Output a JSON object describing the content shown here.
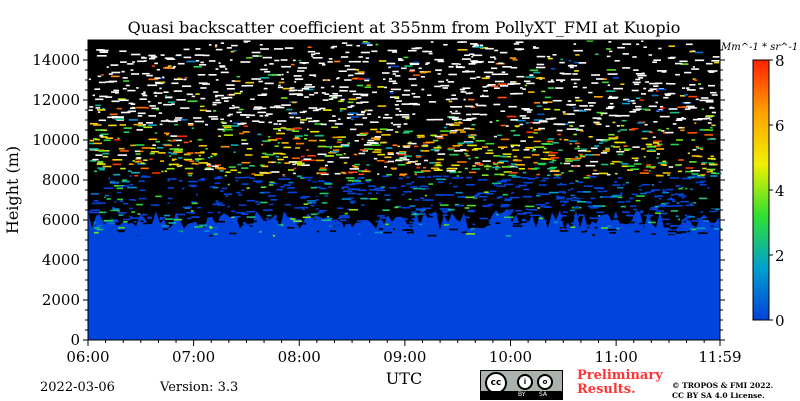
{
  "chart_data": {
    "type": "heatmap",
    "title": "Quasi backscatter coefficient at 355nm from PollyXT_FMI at Kuopio",
    "xlabel": "UTC",
    "ylabel": "Height (m)",
    "x_ticks": [
      "06:00",
      "07:00",
      "08:00",
      "09:00",
      "10:00",
      "11:00",
      "11:59"
    ],
    "xlim": [
      "06:00",
      "11:59"
    ],
    "y_ticks": [
      0,
      2000,
      4000,
      6000,
      8000,
      10000,
      12000,
      14000
    ],
    "ylim": [
      0,
      15000
    ],
    "colorbar": {
      "label": "Mm^-1 * sr^-1",
      "ticks": [
        0,
        2,
        4,
        6,
        8
      ],
      "range": [
        0,
        8
      ],
      "colormap": [
        "#0040d8",
        "#00a0d0",
        "#30e030",
        "#f0f000",
        "#ffa000",
        "#ff2000"
      ]
    },
    "background_color": "#000000",
    "low_signal_color": "#0044dd",
    "noisy_region_start_height": 6000
  },
  "footer": {
    "date": "2022-03-06",
    "version": "Version: 3.3",
    "preliminary": [
      "Preliminary",
      "Results."
    ],
    "license_lines": [
      "© TROPOS & FMI 2022.",
      "CC BY SA 4.0 License."
    ],
    "cc_logo": {
      "text": "cc",
      "by": "BY",
      "sa": "SA"
    }
  }
}
